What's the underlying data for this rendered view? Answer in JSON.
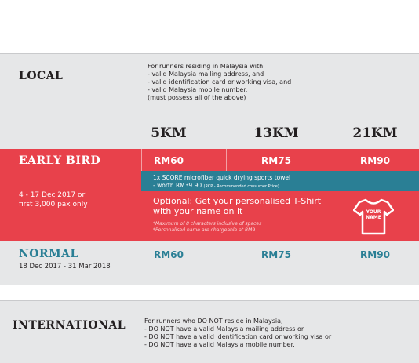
{
  "local": {
    "title": "LOCAL",
    "description": [
      "For runners residing in Malaysia with",
      "- valid Malaysia mailing address, and",
      "- valid identification card or working visa, and",
      "- valid Malaysia mobile number.",
      "(must possess all of the above)"
    ]
  },
  "columns": [
    "5KM",
    "13KM",
    "21KM"
  ],
  "early_bird": {
    "label": "EARLY BIRD",
    "dates": [
      "4 - 17 Dec 2017 or",
      "first 3,000 pax only"
    ],
    "prices": [
      "RM60",
      "RM75",
      "RM90"
    ],
    "towel": {
      "line1": "1x SCORE microfiber quick drying sports towel",
      "line2": "- worth RM39.90",
      "rcp": "(RCP - Recommended consumer Price)"
    },
    "optional": [
      "Optional: Get your personalised T-Shirt",
      "with your name on it"
    ],
    "notes": [
      "*Maximum of 8 characters inclusive of spaces",
      "*Personalised name are chargeable at RM9"
    ],
    "tshirt": [
      "YOUR",
      "NAME"
    ]
  },
  "normal": {
    "label": "NORMAL",
    "dates": "18 Dec 2017 - 31 Mar 2018",
    "prices": [
      "RM60",
      "RM75",
      "RM90"
    ]
  },
  "international": {
    "title": "INTERNATIONAL",
    "description": [
      "For runners who DO NOT reside in Malaysia,",
      "- DO NOT have a valid Malaysia mailing address or",
      "- DO NOT have a valid  identification card or working visa or",
      "- DO NOT have a valid Malaysia mobile number."
    ]
  }
}
